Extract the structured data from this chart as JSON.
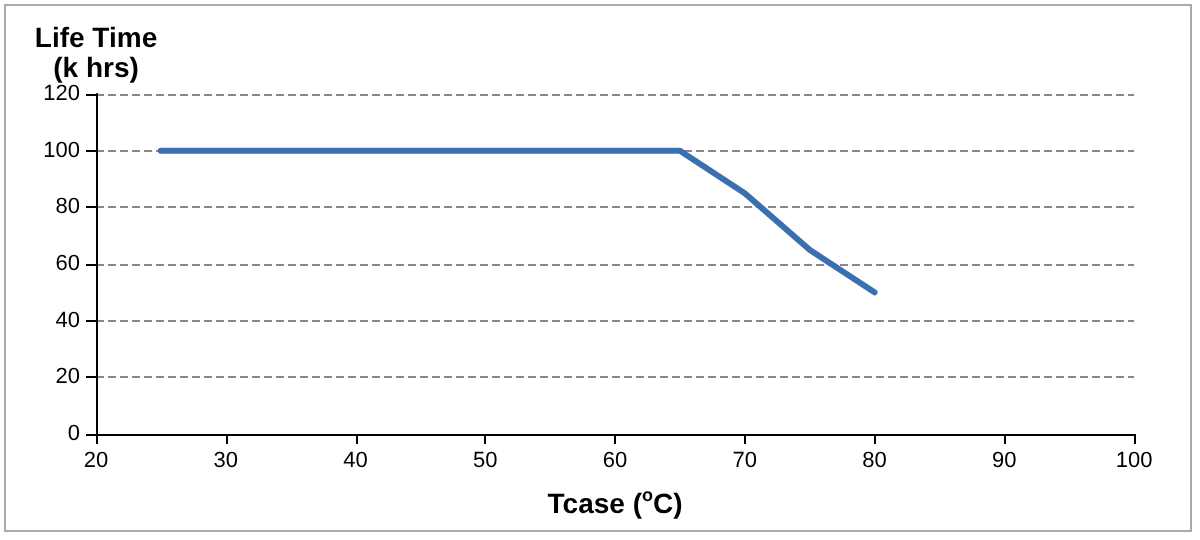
{
  "chart_data": {
    "type": "line",
    "xlabel": "Tcase ($^{o}$C)",
    "ylabel": "Life Time\n(k hrs)",
    "x": [
      25,
      65,
      70,
      75,
      80
    ],
    "series": [
      {
        "color": "#3a6fb0",
        "values": [
          100,
          100,
          85,
          65,
          50
        ]
      }
    ],
    "xlim": [
      20,
      100
    ],
    "xticks": [
      20,
      30,
      40,
      50,
      60,
      70,
      80,
      90,
      100
    ],
    "ylim": [
      0,
      120
    ],
    "yticks": [
      0,
      20,
      40,
      60,
      80,
      100,
      120
    ],
    "grid": "y",
    "marker": "none",
    "line_style": "solid"
  }
}
